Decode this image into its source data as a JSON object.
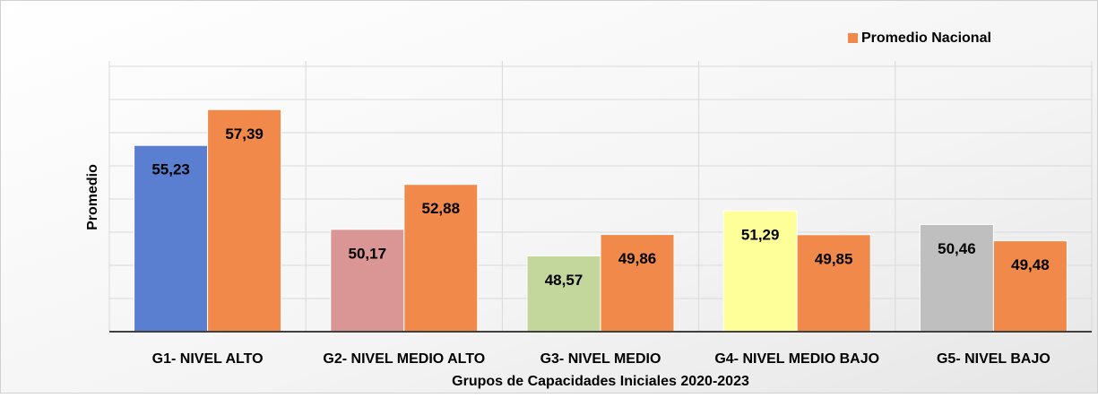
{
  "chart_data": {
    "type": "bar",
    "x_label": "Grupos de Capacidades Iniciales 2020-2023",
    "y_label": "Promedio",
    "categories": [
      "G1- NIVEL ALTO",
      "G2- NIVEL MEDIO ALTO",
      "G3- NIVEL MEDIO",
      "G4- NIVEL MEDIO BAJO",
      "G5- NIVEL BAJO"
    ],
    "series": [
      {
        "colors": [
          "#5b7fd0",
          "#d99694",
          "#c3d69b",
          "#ffff99",
          "#bfbfbf"
        ],
        "values": [
          55.23,
          50.17,
          48.57,
          51.29,
          50.46
        ],
        "value_labels": [
          "55,23",
          "50,17",
          "48,57",
          "51,29",
          "50,46"
        ]
      },
      {
        "name": "Promedio Nacional",
        "color": "#f0894a",
        "values": [
          57.39,
          52.88,
          49.86,
          49.85,
          49.48
        ],
        "value_labels": [
          "57,39",
          "52,88",
          "49,86",
          "49,85",
          "49,48"
        ]
      }
    ],
    "ylim": [
      44,
      60
    ],
    "yticks": [
      44,
      46,
      48,
      50,
      52,
      54,
      56,
      58,
      60
    ],
    "grid": true,
    "legend": "top-right"
  }
}
